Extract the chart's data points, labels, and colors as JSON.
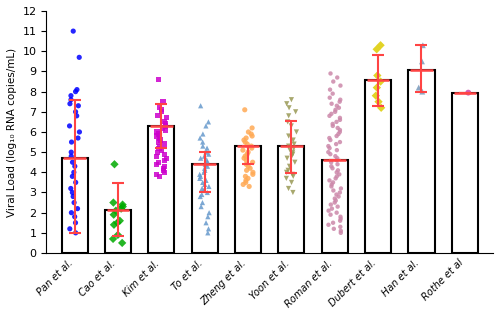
{
  "studies": [
    "Pan et al.",
    "Cao et al.",
    "Kim et al.",
    "To et al.",
    "Zheng et al.",
    "Yoon et al.",
    "Roman et al.",
    "Dubert et al.",
    "Han et al.",
    "Rothe et al"
  ],
  "bar_heights": [
    4.7,
    2.15,
    6.3,
    4.4,
    5.3,
    5.3,
    4.6,
    8.6,
    9.05,
    7.95
  ],
  "error_bar_upper": [
    7.6,
    3.45,
    7.4,
    5.0,
    4.6,
    6.55,
    4.6,
    9.8,
    10.3,
    7.95
  ],
  "error_bar_lower": [
    1.0,
    0.85,
    5.2,
    3.0,
    4.4,
    3.95,
    4.6,
    7.3,
    8.0,
    7.95
  ],
  "colors": [
    "#0000ff",
    "#00aa00",
    "#cc00cc",
    "#6699cc",
    "#ffaa55",
    "#999955",
    "#cc88aa",
    "#ddcc00",
    "#7799bb",
    "#cc44aa"
  ],
  "markers": [
    "o",
    "D",
    "s",
    "^",
    "o",
    "v",
    "o",
    "D",
    "^",
    "o"
  ],
  "point_data": {
    "Pan et al.": [
      11.0,
      9.7,
      8.1,
      8.0,
      7.8,
      7.6,
      7.4,
      7.3,
      7.0,
      6.8,
      6.3,
      6.0,
      5.7,
      5.5,
      5.0,
      4.8,
      4.5,
      4.3,
      4.0,
      3.8,
      3.5,
      3.2,
      3.0,
      2.8,
      2.5,
      2.2,
      2.0,
      1.8,
      1.5,
      1.2,
      1.0
    ],
    "Cao et al.": [
      4.4,
      2.5,
      2.4,
      2.3,
      2.2,
      2.1,
      1.9,
      1.6,
      1.5,
      1.4,
      0.9,
      0.7,
      0.5
    ],
    "Kim et al.": [
      8.6,
      7.5,
      7.2,
      7.1,
      7.0,
      6.8,
      6.7,
      6.5,
      6.4,
      6.3,
      6.2,
      6.1,
      6.0,
      5.9,
      5.8,
      5.7,
      5.6,
      5.5,
      5.4,
      5.3,
      5.2,
      5.1,
      5.0,
      4.9,
      4.8,
      4.7,
      4.6,
      4.5,
      4.4,
      4.3,
      4.2,
      4.1,
      4.0,
      3.9,
      3.8
    ],
    "To et al.": [
      7.3,
      6.5,
      6.3,
      5.9,
      5.7,
      5.5,
      5.3,
      5.2,
      5.0,
      4.9,
      4.8,
      4.7,
      4.6,
      4.5,
      4.4,
      4.3,
      4.2,
      4.1,
      4.0,
      3.9,
      3.8,
      3.7,
      3.6,
      3.5,
      3.4,
      3.3,
      3.2,
      3.1,
      3.0,
      2.9,
      2.8,
      2.5,
      2.3,
      2.0,
      1.8,
      1.5,
      1.2,
      1.0
    ],
    "Zheng et al.": [
      7.1,
      6.2,
      6.0,
      5.9,
      5.8,
      5.7,
      5.6,
      5.5,
      5.4,
      5.3,
      5.2,
      5.1,
      5.0,
      4.9,
      4.8,
      4.7,
      4.6,
      4.5,
      4.4,
      4.3,
      4.2,
      4.1,
      4.0,
      3.9,
      3.8,
      3.7,
      3.6,
      3.5,
      3.4,
      3.3
    ],
    "Yoon et al.": [
      7.6,
      7.4,
      7.2,
      7.0,
      6.8,
      6.5,
      6.3,
      6.0,
      5.8,
      5.6,
      5.4,
      5.3,
      5.2,
      5.1,
      5.0,
      4.9,
      4.8,
      4.7,
      4.5,
      4.3,
      4.1,
      4.0,
      3.9,
      3.8,
      3.7,
      3.5,
      3.2,
      3.0
    ],
    "Roman et al.": [
      8.9,
      8.7,
      8.5,
      8.3,
      8.1,
      7.9,
      7.7,
      7.6,
      7.5,
      7.4,
      7.3,
      7.2,
      7.1,
      7.0,
      6.9,
      6.8,
      6.7,
      6.6,
      6.5,
      6.4,
      6.3,
      6.2,
      6.1,
      6.0,
      5.9,
      5.8,
      5.7,
      5.6,
      5.5,
      5.4,
      5.3,
      5.2,
      5.1,
      5.0,
      4.9,
      4.8,
      4.7,
      4.6,
      4.5,
      4.4,
      4.3,
      4.2,
      4.1,
      4.0,
      3.9,
      3.8,
      3.7,
      3.6,
      3.5,
      3.4,
      3.3,
      3.2,
      3.1,
      3.0,
      2.9,
      2.8,
      2.7,
      2.6,
      2.5,
      2.4,
      2.3,
      2.2,
      2.1,
      2.0,
      1.9,
      1.8,
      1.7,
      1.6,
      1.5,
      1.4,
      1.3,
      1.2,
      1.1,
      1.0
    ],
    "Dubert et al.": [
      10.3,
      10.1,
      8.8,
      8.5,
      8.2,
      7.8,
      7.5,
      7.2
    ],
    "Han et al.": [
      10.3,
      9.5,
      8.2,
      8.0
    ],
    "Rothe et al": [
      7.95
    ]
  },
  "error_color": "#ff4444",
  "bar_color": "white",
  "bar_edgecolor": "black",
  "ylim": [
    0,
    12
  ],
  "yticks": [
    0,
    1,
    2,
    3,
    4,
    5,
    6,
    7,
    8,
    9,
    10,
    11,
    12
  ],
  "ylabel": "Viral Load (log₁₀ RNA copies/mL)",
  "bar_width": 0.6
}
